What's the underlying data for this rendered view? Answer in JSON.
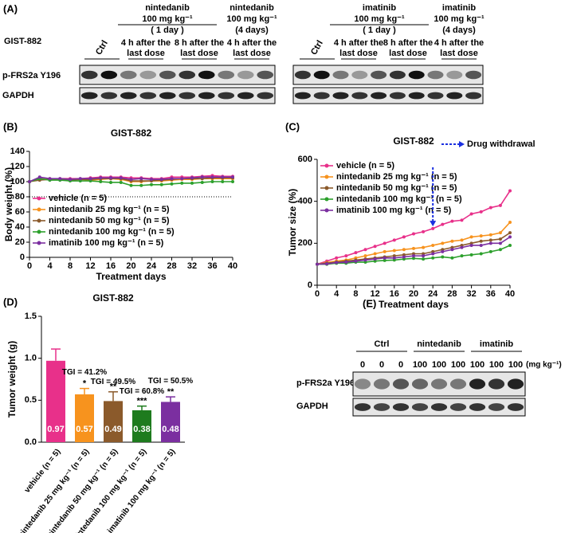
{
  "panel_a": {
    "label": "(A)",
    "cell_line": "GIST-882",
    "row_labels": [
      "p-FRS2a Y196",
      "GAPDH"
    ],
    "blots": [
      {
        "headers": [
          {
            "lines": [
              "nintedanib",
              "100 mg kg⁻¹",
              "( 1 day )"
            ]
          },
          {
            "lines": [
              "nintedanib",
              "100 mg kg⁻¹",
              "(4 days)"
            ]
          }
        ],
        "lanes": [
          {
            "lines": [
              "Ctrl"
            ]
          },
          {
            "lines": [
              "4 h after the",
              "last dose"
            ]
          },
          {
            "lines": [
              "8 h after the",
              "last dose"
            ]
          },
          {
            "lines": [
              "4 h after the",
              "last dose"
            ]
          }
        ]
      },
      {
        "headers": [
          {
            "lines": [
              "imatinib",
              "100 mg kg⁻¹",
              "( 1 day )"
            ]
          },
          {
            "lines": [
              "imatinib",
              "100 mg kg⁻¹",
              "(4 days)"
            ]
          }
        ],
        "lanes": [
          {
            "lines": [
              "Ctrl"
            ]
          },
          {
            "lines": [
              "4 h after the",
              "last dose"
            ]
          },
          {
            "lines": [
              "8 h after the",
              "last dose"
            ]
          },
          {
            "lines": [
              "4 h after the",
              "last dose"
            ]
          }
        ]
      }
    ]
  },
  "panel_e": {
    "label": "(E)",
    "groups": [
      "Ctrl",
      "nintedanib",
      "imatinib"
    ],
    "doses": [
      0,
      0,
      0,
      100,
      100,
      100,
      100,
      100,
      100
    ],
    "dose_unit": "(mg kg⁻¹)",
    "row_labels": [
      "p-FRS2a Y196",
      "GAPDH"
    ]
  },
  "chart_data": [
    {
      "type": "line",
      "panel": "(B)",
      "title": "GIST-882",
      "x_label": "Treatment days",
      "y_label": "Body weight (%)",
      "x": [
        0,
        2,
        4,
        6,
        8,
        10,
        12,
        14,
        16,
        18,
        20,
        22,
        24,
        26,
        28,
        30,
        32,
        34,
        36,
        38,
        40
      ],
      "series": [
        {
          "name": "vehicle (n = 5)",
          "color": "#e8308a",
          "values": [
            100,
            104,
            103,
            104,
            104,
            104,
            105,
            106,
            106,
            106,
            105,
            105,
            104,
            104,
            106,
            106,
            106,
            107,
            108,
            107,
            107
          ]
        },
        {
          "name": "nintedanib 25 mg kg⁻¹ (n = 5)",
          "color": "#f7931e",
          "values": [
            100,
            103,
            104,
            103,
            102,
            103,
            102,
            103,
            104,
            103,
            100,
            100,
            101,
            101,
            102,
            103,
            103,
            104,
            104,
            104,
            104
          ]
        },
        {
          "name": "nintedanib 50 mg kg⁻¹ (n = 5)",
          "color": "#8b5a2b",
          "values": [
            100,
            102,
            103,
            103,
            102,
            103,
            103,
            104,
            104,
            104,
            101,
            101,
            101,
            102,
            103,
            104,
            104,
            104,
            105,
            105,
            105
          ]
        },
        {
          "name": "nintedanib 100 mg kg⁻¹ (n = 5)",
          "color": "#2ca02c",
          "values": [
            100,
            104,
            102,
            102,
            101,
            101,
            101,
            100,
            99,
            99,
            95,
            95,
            96,
            96,
            97,
            98,
            98,
            99,
            100,
            100,
            100
          ]
        },
        {
          "name": "imatinib 100 mg kg⁻¹ (n = 5)",
          "color": "#7b2fa0",
          "values": [
            100,
            106,
            104,
            104,
            103,
            104,
            104,
            105,
            105,
            105,
            103,
            104,
            103,
            103,
            104,
            104,
            105,
            106,
            106,
            106,
            106
          ]
        }
      ],
      "xlim": [
        0,
        40
      ],
      "xticks": [
        0,
        4,
        8,
        12,
        16,
        20,
        24,
        28,
        32,
        36,
        40
      ],
      "ylim": [
        0,
        140
      ],
      "yticks": [
        0,
        20,
        40,
        60,
        80,
        100,
        120,
        140
      ],
      "reference_line": 80,
      "legend": "lower left"
    },
    {
      "type": "line",
      "panel": "(C)",
      "title": "GIST-882",
      "x_label": "Treatment days",
      "y_label": "Tumor size (%)",
      "x": [
        0,
        2,
        4,
        6,
        8,
        10,
        12,
        14,
        16,
        18,
        20,
        22,
        24,
        26,
        28,
        30,
        32,
        34,
        36,
        38,
        40
      ],
      "series": [
        {
          "name": "vehicle (n = 5)",
          "color": "#e8308a",
          "values": [
            100,
            115,
            130,
            140,
            155,
            170,
            185,
            200,
            215,
            230,
            245,
            255,
            270,
            290,
            305,
            310,
            340,
            350,
            370,
            380,
            450
          ]
        },
        {
          "name": "nintedanib 25 mg kg⁻¹ (n = 5)",
          "color": "#f7931e",
          "values": [
            100,
            108,
            115,
            120,
            130,
            140,
            150,
            160,
            165,
            170,
            175,
            180,
            190,
            200,
            210,
            215,
            230,
            235,
            240,
            250,
            300
          ]
        },
        {
          "name": "nintedanib 50 mg kg⁻¹ (n = 5)",
          "color": "#8b5a2b",
          "values": [
            100,
            105,
            110,
            115,
            120,
            125,
            130,
            135,
            140,
            145,
            150,
            150,
            160,
            170,
            180,
            190,
            200,
            210,
            215,
            220,
            250
          ]
        },
        {
          "name": "nintedanib 100 mg kg⁻¹ (n = 5)",
          "color": "#2ca02c",
          "values": [
            100,
            100,
            105,
            105,
            110,
            110,
            115,
            118,
            120,
            125,
            128,
            125,
            130,
            135,
            130,
            140,
            145,
            150,
            160,
            170,
            190
          ]
        },
        {
          "name": "imatinib 100 mg kg⁻¹ (n = 5)",
          "color": "#7b2fa0",
          "values": [
            100,
            102,
            108,
            110,
            115,
            120,
            125,
            130,
            130,
            135,
            140,
            140,
            150,
            160,
            170,
            180,
            190,
            190,
            200,
            200,
            230
          ]
        }
      ],
      "xlim": [
        0,
        40
      ],
      "xticks": [
        0,
        4,
        8,
        12,
        16,
        20,
        24,
        28,
        32,
        36,
        40
      ],
      "ylim": [
        0,
        600
      ],
      "yticks": [
        0,
        200,
        400,
        600
      ],
      "legend": "upper left",
      "annotation": "Drug withdrawal",
      "withdrawal_day": 24
    },
    {
      "type": "bar",
      "panel": "(D)",
      "title": "GIST-882",
      "y_label": "Tumor weight (g)",
      "categories": [
        "vehicle (n = 5)",
        "nintedanib 25 mg kg⁻¹ (n = 5)",
        "nintedanib 50 mg kg⁻¹ (n = 5)",
        "nintedanib 100 mg kg⁻¹ (n = 5)",
        "imatinib 100 mg kg⁻¹ (n = 5)"
      ],
      "values": [
        0.97,
        0.57,
        0.49,
        0.38,
        0.48
      ],
      "errors": [
        0.14,
        0.07,
        0.11,
        0.05,
        0.06
      ],
      "colors": [
        "#e8308a",
        "#f7931e",
        "#8b5a2b",
        "#1e7b1e",
        "#7b2fa0"
      ],
      "significance": [
        null,
        "*",
        "**",
        "***",
        "**"
      ],
      "tgi_labels": [
        null,
        "TGI = 41.2%",
        "TGI = 49.5%",
        "TGI = 60.8%",
        "TGI = 50.5%"
      ],
      "ylim": [
        0,
        1.5
      ],
      "yticks": [
        {
          "value": 0,
          "label": "0.0"
        },
        0.5,
        {
          "value": 1,
          "label": "1.0"
        },
        1.5
      ]
    }
  ]
}
